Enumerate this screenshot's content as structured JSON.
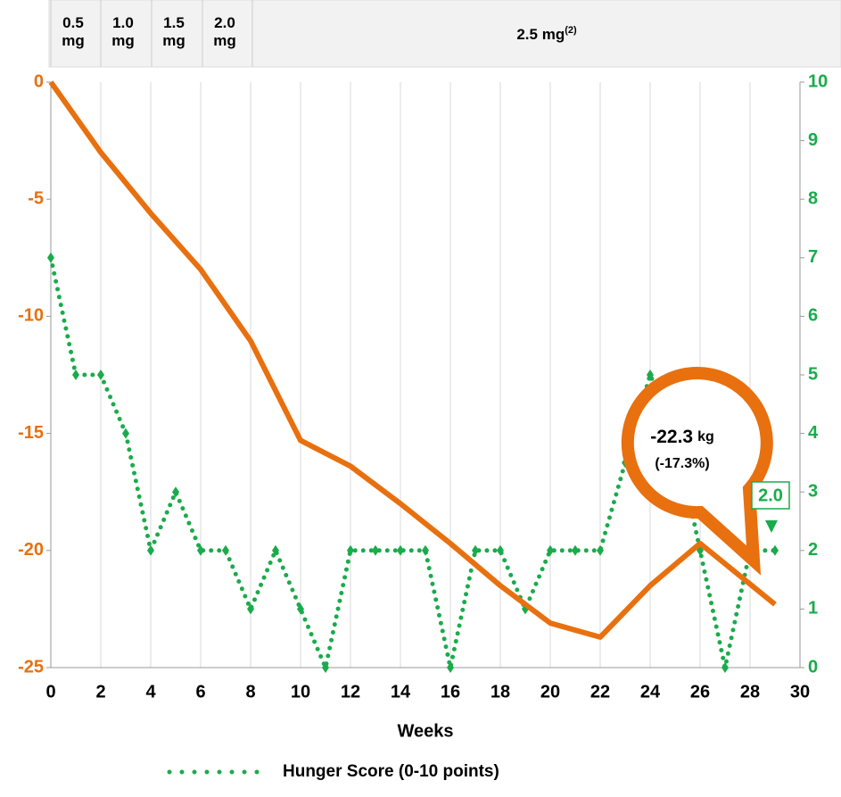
{
  "chart_data": {
    "type": "line",
    "dose_bar": [
      {
        "label": "0.5 mg"
      },
      {
        "label": "1.0 mg"
      },
      {
        "label": "1.5 mg"
      },
      {
        "label": "2.0 mg"
      },
      {
        "label": "2.5 mg",
        "sup": "(2)"
      }
    ],
    "x_label": "Weeks",
    "xlim": [
      0,
      30
    ],
    "xticks": [
      0,
      2,
      4,
      6,
      8,
      10,
      12,
      14,
      16,
      18,
      20,
      22,
      24,
      26,
      28,
      30
    ],
    "ylim": [
      -25,
      0
    ],
    "yticks": [
      0,
      -5,
      -10,
      -15,
      -20,
      -25
    ],
    "y2lim": [
      0,
      10
    ],
    "y2ticks": [
      0,
      1,
      2,
      3,
      4,
      5,
      6,
      7,
      8,
      9,
      10
    ],
    "grid": true,
    "series": [
      {
        "color": "#e8700f",
        "x": [
          0,
          2,
          4,
          6,
          8,
          10,
          12,
          14,
          16,
          18,
          20,
          22,
          24,
          26,
          29
        ],
        "values": [
          0,
          -3.0,
          -5.6,
          -8.0,
          -11.05,
          -15.3,
          -16.4,
          -18.0,
          -19.7,
          -21.5,
          -23.1,
          -23.7,
          -21.5,
          -19.7,
          -22.3
        ]
      },
      {
        "name": "Hunger Score (0-10 points)",
        "color": "#1aab4b",
        "axis": "y2",
        "x": [
          0,
          1,
          2,
          3,
          4,
          5,
          6,
          7,
          8,
          9,
          10,
          11,
          12,
          13,
          14,
          15,
          16,
          17,
          18,
          19,
          20,
          21,
          22,
          23,
          24,
          25,
          26,
          27,
          28,
          29
        ],
        "values": [
          7,
          5,
          5,
          4,
          2,
          3,
          2,
          2,
          1,
          2,
          1,
          0,
          2,
          2,
          2,
          2,
          0,
          2,
          2,
          1,
          2,
          2,
          2,
          3.5,
          5,
          4,
          2,
          0,
          2,
          2
        ]
      }
    ],
    "callout": {
      "value": "-22.3",
      "unit": "kg",
      "percent": "(-17.3%)"
    },
    "end_label": "2.0"
  }
}
